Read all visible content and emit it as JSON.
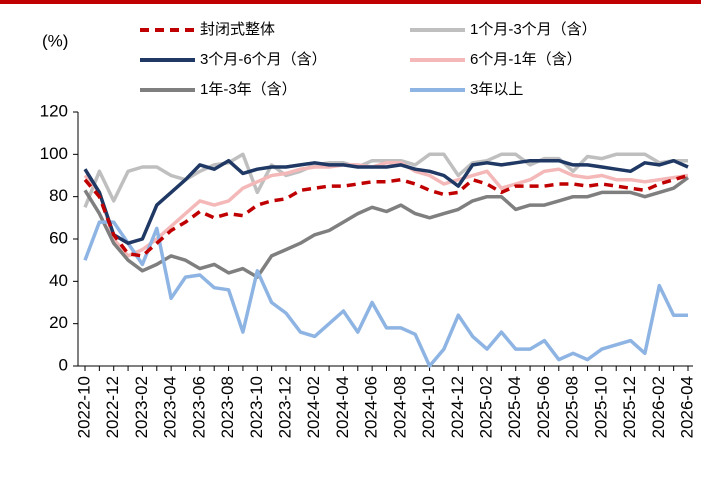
{
  "chart_data": {
    "type": "line",
    "y_label": "(%)",
    "categories": [
      "2022-10",
      null,
      "2022-12",
      null,
      "2023-02",
      null,
      "2023-04",
      null,
      "2023-06",
      null,
      "2023-08",
      null,
      "2023-10",
      null,
      "2023-12",
      null,
      "2024-02",
      null,
      "2024-04",
      null,
      "2024-06",
      null,
      "2024-08",
      null,
      "2024-10",
      null,
      "2024-12",
      null,
      "2025-02",
      null,
      "2025-04",
      null,
      "2025-06",
      null,
      "2025-08",
      null,
      "2025-10",
      null,
      "2025-12",
      null,
      "2026-02",
      null,
      "2026-04"
    ],
    "ylim": [
      0,
      120
    ],
    "yticks": [
      0,
      20,
      40,
      60,
      80,
      100,
      120
    ],
    "grid": false,
    "series": [
      {
        "name": "封闭式整体",
        "color": "#c00000",
        "line_style": "dashed",
        "values": [
          88,
          80,
          62,
          53,
          52,
          58,
          64,
          68,
          73,
          70,
          72,
          71,
          76,
          78,
          79,
          83,
          84,
          85,
          85,
          86,
          87,
          87,
          88,
          86,
          83,
          81,
          82,
          88,
          86,
          82,
          85,
          85,
          85,
          86,
          86,
          85,
          86,
          85,
          84,
          83,
          86,
          88,
          90
        ]
      },
      {
        "name": "1个月-3个月（含）",
        "color": "#bfbfbf",
        "line_style": "solid",
        "values": [
          75,
          92,
          78,
          92,
          94,
          94,
          90,
          88,
          92,
          95,
          96,
          100,
          82,
          95,
          90,
          92,
          95,
          96,
          96,
          94,
          97,
          97,
          97,
          95,
          100,
          100,
          90,
          96,
          97,
          100,
          100,
          95,
          98,
          98,
          92,
          99,
          98,
          100,
          100,
          100,
          96,
          97,
          97
        ]
      },
      {
        "name": "3个月-6个月（含）",
        "color": "#1f3864",
        "line_style": "solid",
        "values": [
          93,
          82,
          62,
          58,
          60,
          76,
          82,
          88,
          95,
          93,
          97,
          91,
          93,
          94,
          94,
          95,
          96,
          95,
          95,
          94,
          94,
          94,
          95,
          93,
          92,
          90,
          85,
          95,
          96,
          95,
          96,
          97,
          97,
          97,
          95,
          95,
          94,
          93,
          92,
          96,
          95,
          97,
          94
        ]
      },
      {
        "name": "6个月-1年（含）",
        "color": "#f4b8b8",
        "line_style": "solid",
        "values": [
          90,
          82,
          60,
          52,
          55,
          60,
          66,
          72,
          78,
          76,
          78,
          84,
          87,
          90,
          91,
          93,
          94,
          94,
          95,
          95,
          94,
          96,
          96,
          92,
          90,
          86,
          88,
          90,
          92,
          84,
          86,
          88,
          92,
          93,
          90,
          89,
          90,
          88,
          88,
          87,
          88,
          89,
          90
        ]
      },
      {
        "name": "1年-3年（含）",
        "color": "#7f7f7f",
        "line_style": "solid",
        "values": [
          83,
          72,
          58,
          50,
          45,
          48,
          52,
          50,
          46,
          48,
          44,
          46,
          42,
          52,
          55,
          58,
          62,
          64,
          68,
          72,
          75,
          73,
          76,
          72,
          70,
          72,
          74,
          78,
          80,
          80,
          74,
          76,
          76,
          78,
          80,
          80,
          82,
          82,
          82,
          80,
          82,
          84,
          89
        ]
      },
      {
        "name": "3年以上",
        "color": "#8eb4e3",
        "line_style": "solid",
        "values": [
          50,
          68,
          68,
          58,
          48,
          65,
          32,
          42,
          43,
          37,
          36,
          16,
          45,
          30,
          25,
          16,
          14,
          20,
          26,
          16,
          30,
          18,
          18,
          15,
          0,
          8,
          24,
          14,
          8,
          16,
          8,
          8,
          12,
          3,
          6,
          3,
          8,
          10,
          12,
          6,
          38,
          24,
          24
        ]
      }
    ]
  }
}
